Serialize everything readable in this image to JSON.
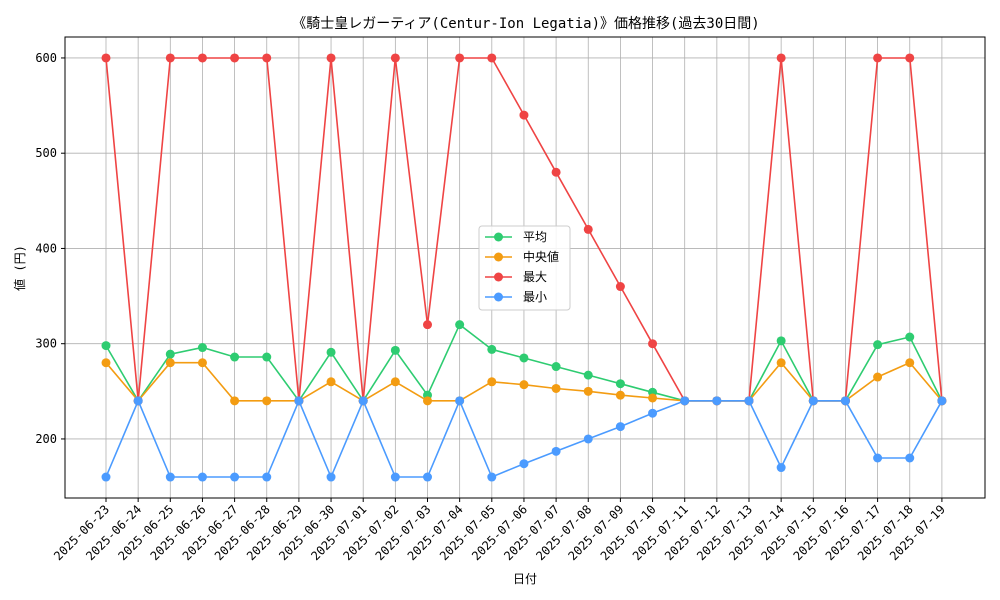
{
  "chart_data": {
    "type": "line",
    "title": "《騎士皇レガーティア(Centur-Ion Legatia)》価格推移(過去30日間)",
    "xlabel": "日付",
    "ylabel": "値 (円)",
    "ylim": [
      138,
      622
    ],
    "yticks": [
      200,
      300,
      400,
      500,
      600
    ],
    "grid": true,
    "legend_position": "center",
    "categories": [
      "2025-06-23",
      "2025-06-24",
      "2025-06-25",
      "2025-06-26",
      "2025-06-27",
      "2025-06-28",
      "2025-06-29",
      "2025-06-30",
      "2025-07-01",
      "2025-07-02",
      "2025-07-03",
      "2025-07-04",
      "2025-07-05",
      "2025-07-06",
      "2025-07-07",
      "2025-07-08",
      "2025-07-09",
      "2025-07-10",
      "2025-07-11",
      "2025-07-12",
      "2025-07-13",
      "2025-07-14",
      "2025-07-15",
      "2025-07-16",
      "2025-07-17",
      "2025-07-18",
      "2025-07-19"
    ],
    "series": [
      {
        "name": "平均",
        "color": "#2ecc71",
        "values": [
          298,
          240,
          289,
          296,
          286,
          286,
          240,
          291,
          240,
          293,
          246,
          320,
          294,
          285,
          276,
          267,
          258,
          249,
          240,
          240,
          240,
          303,
          240,
          240,
          299,
          307,
          240
        ]
      },
      {
        "name": "中央値",
        "color": "#f39c12",
        "values": [
          280,
          240,
          280,
          280,
          240,
          240,
          240,
          260,
          240,
          260,
          240,
          240,
          260,
          257,
          253,
          250,
          246,
          243,
          240,
          240,
          240,
          280,
          240,
          240,
          265,
          280,
          240
        ]
      },
      {
        "name": "最大",
        "color": "#ef4444",
        "values": [
          600,
          240,
          600,
          600,
          600,
          600,
          240,
          600,
          240,
          600,
          320,
          600,
          600,
          540,
          480,
          420,
          360,
          300,
          240,
          240,
          240,
          600,
          240,
          240,
          600,
          600,
          240
        ]
      },
      {
        "name": "最小",
        "color": "#4b9bff",
        "values": [
          160,
          240,
          160,
          160,
          160,
          160,
          240,
          160,
          240,
          160,
          160,
          240,
          160,
          174,
          187,
          200,
          213,
          227,
          240,
          240,
          240,
          170,
          240,
          240,
          180,
          180,
          240
        ]
      }
    ]
  }
}
